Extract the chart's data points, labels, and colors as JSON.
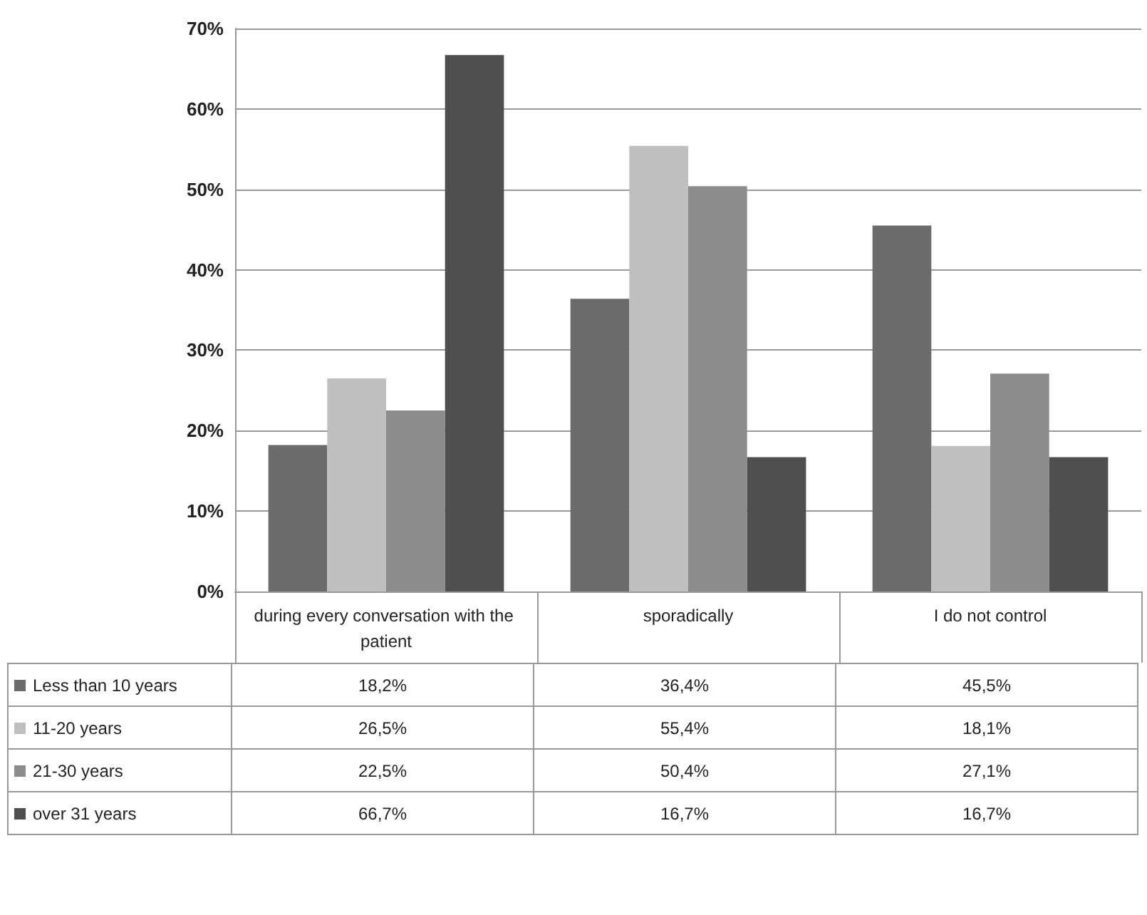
{
  "chart_data": {
    "type": "bar",
    "categories": [
      "during every conversation with the patient",
      "sporadically",
      "I do not control"
    ],
    "series": [
      {
        "name": "Less than 10 years",
        "color": "#6b6b6b",
        "values": [
          18.2,
          36.4,
          45.5
        ],
        "value_labels": [
          "18,2%",
          "36,4%",
          "45,5%"
        ]
      },
      {
        "name": "11-20 years",
        "color": "#bfbfbf",
        "values": [
          26.5,
          55.4,
          18.1
        ],
        "value_labels": [
          "26,5%",
          "55,4%",
          "18,1%"
        ]
      },
      {
        "name": "21-30 years",
        "color": "#8c8c8c",
        "values": [
          22.5,
          50.4,
          27.1
        ],
        "value_labels": [
          "22,5%",
          "50,4%",
          "27,1%"
        ]
      },
      {
        "name": "over 31 years",
        "color": "#4f4f4f",
        "values": [
          66.7,
          16.7,
          16.7
        ],
        "value_labels": [
          "66,7%",
          "16,7%",
          "16,7%"
        ]
      }
    ],
    "ylim": [
      0,
      70
    ],
    "yticks": [
      {
        "value": 0,
        "label": "0%"
      },
      {
        "value": 10,
        "label": "10%"
      },
      {
        "value": 20,
        "label": "20%"
      },
      {
        "value": 30,
        "label": "30%"
      },
      {
        "value": 40,
        "label": "40%"
      },
      {
        "value": 50,
        "label": "50%"
      },
      {
        "value": 60,
        "label": "60%"
      },
      {
        "value": 70,
        "label": "70%"
      }
    ],
    "grid": "y",
    "legend": "bottom"
  }
}
